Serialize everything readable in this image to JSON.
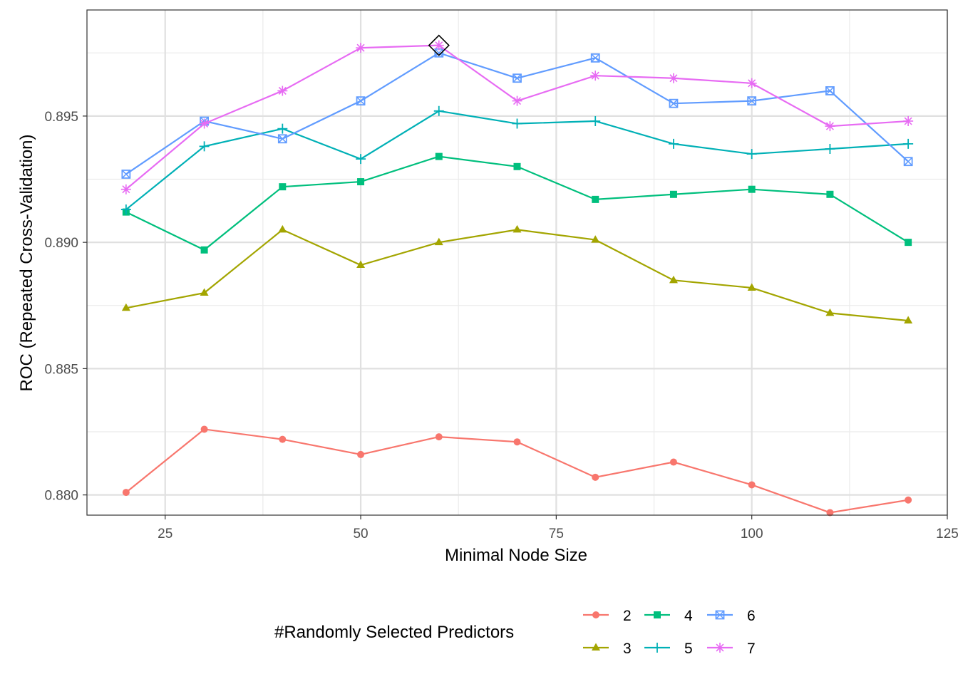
{
  "chart_data": {
    "type": "line",
    "xlabel": "Minimal Node Size",
    "ylabel": "ROC (Repeated Cross-Validation)",
    "x": [
      20,
      30,
      40,
      50,
      60,
      70,
      80,
      90,
      100,
      110,
      120
    ],
    "xlim": [
      15,
      125
    ],
    "ylim": [
      0.8792,
      0.8992
    ],
    "xticks": [
      25,
      50,
      75,
      100,
      125
    ],
    "xtick_labels": [
      "25",
      "50",
      "75",
      "100",
      "125"
    ],
    "yticks": [
      0.88,
      0.885,
      0.89,
      0.895
    ],
    "ytick_labels": [
      "0.880",
      "0.885",
      "0.890",
      "0.895"
    ],
    "grid": true,
    "legend": {
      "title": "#Randomly Selected Predictors",
      "position": "bottom"
    },
    "series": [
      {
        "name": "2",
        "color": "#F8766D",
        "marker": "circle",
        "values": [
          0.8801,
          0.8826,
          0.8822,
          0.8816,
          0.8823,
          0.8821,
          0.8807,
          0.8813,
          0.8804,
          0.8793,
          0.8798
        ]
      },
      {
        "name": "3",
        "color": "#A3A500",
        "marker": "triangle",
        "values": [
          0.8874,
          0.888,
          0.8905,
          0.8891,
          0.89,
          0.8905,
          0.8901,
          0.8885,
          0.8882,
          0.8872,
          0.8869
        ]
      },
      {
        "name": "4",
        "color": "#00BF7D",
        "marker": "square",
        "values": [
          0.8912,
          0.8897,
          0.8922,
          0.8924,
          0.8934,
          0.893,
          0.8917,
          0.8919,
          0.8921,
          0.8919,
          0.89
        ]
      },
      {
        "name": "5",
        "color": "#00B0B6",
        "marker": "plus",
        "values": [
          0.8913,
          0.8938,
          0.8945,
          0.8933,
          0.8952,
          0.8947,
          0.8948,
          0.8939,
          0.8935,
          0.8937,
          0.8939
        ]
      },
      {
        "name": "6",
        "color": "#619CFF",
        "marker": "boxcross",
        "values": [
          0.8927,
          0.8948,
          0.8941,
          0.8956,
          0.8975,
          0.8965,
          0.8973,
          0.8955,
          0.8956,
          0.896,
          0.8932
        ]
      },
      {
        "name": "7",
        "color": "#E76BF3",
        "marker": "asterisk",
        "values": [
          0.8921,
          0.8947,
          0.896,
          0.8977,
          0.8978,
          0.8956,
          0.8966,
          0.8965,
          0.8963,
          0.8946,
          0.8948
        ]
      }
    ],
    "best": {
      "x": 60,
      "y": 0.8978,
      "marker": "diamond"
    }
  }
}
